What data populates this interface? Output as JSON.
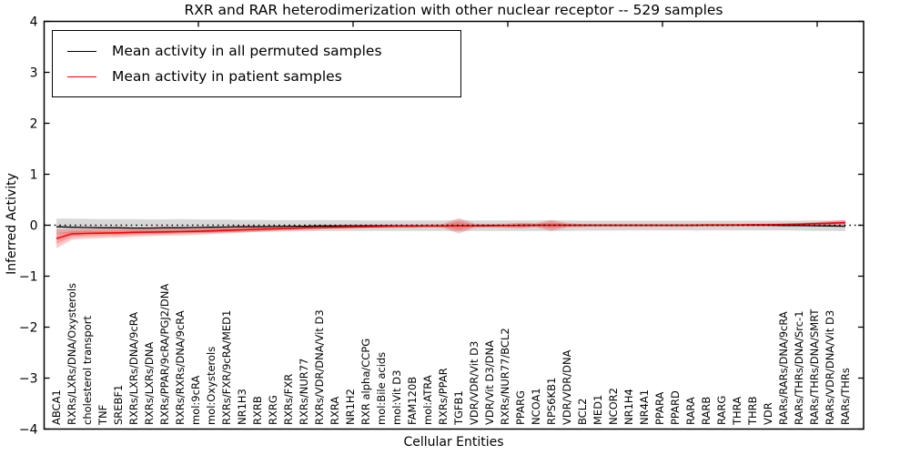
{
  "chart_data": {
    "type": "line",
    "title": "RXR and RAR heterodimerization with other nuclear receptor -- 529 samples",
    "xlabel": "Cellular Entities",
    "ylabel": "Inferred Activity",
    "ylim": [
      -4,
      4
    ],
    "yticks": [
      "4",
      "3",
      "2",
      "1",
      "0",
      "−1",
      "−2",
      "−3",
      "−4"
    ],
    "ytick_values": [
      4,
      3,
      2,
      1,
      0,
      -1,
      -2,
      -3,
      -4
    ],
    "grid": false,
    "zero_line": true,
    "legend_position": "upper left",
    "legend": [
      {
        "label": "Mean activity in all permuted samples",
        "color": "#000000"
      },
      {
        "label": "Mean activity in patient samples",
        "color": "#ff0000"
      }
    ],
    "categories": [
      "ABCA1",
      "RXRs/LXRs/DNA/Oxysterols",
      "cholesterol transport",
      "TNF",
      "SREBF1",
      "RXRs/LXRs/DNA/9cRA",
      "RXRs/LXRs/DNA",
      "RXRs/PPAR/9cRA/PGJ2/DNA",
      "RXRs/RXRs/DNA/9cRA",
      "mol:9cRA",
      "mol:Oxysterols",
      "RXRs/FXR/9cRA/MED1",
      "NR1H3",
      "RXRB",
      "RXRG",
      "RXRs/FXR",
      "RXRs/NUR77",
      "RXRs/VDR/DNA/Vit D3",
      "RXRA",
      "NR1H2",
      "RXR alpha/CCPG",
      "mol:Bile acids",
      "mol:Vit D3",
      "FAM120B",
      "mol:ATRA",
      "RXRs/PPAR",
      "TGFB1",
      "VDR/VDR/Vit D3",
      "VDR/Vit D3/DNA",
      "RXRs/NUR77/BCL2",
      "PPARG",
      "NCOA1",
      "RPS6KB1",
      "VDR/VDR/DNA",
      "BCL2",
      "MED1",
      "NCOR2",
      "NR1H4",
      "NR4A1",
      "PPARA",
      "PPARD",
      "RARA",
      "RARB",
      "RARG",
      "THRA",
      "THRB",
      "VDR",
      "RARs/RARs/DNA/9cRA",
      "RARs/THRs/DNA/Src-1",
      "RARs/THRs/DNA/SMRT",
      "RARs/VDR/DNA/Vit D3",
      "RARs/THRs"
    ],
    "series": [
      {
        "name": "Mean activity in all permuted samples",
        "color": "#000000",
        "band_color": "rgba(125,125,125,0.30)",
        "values": [
          -0.03,
          -0.04,
          -0.045,
          -0.05,
          -0.05,
          -0.055,
          -0.055,
          -0.05,
          -0.05,
          -0.045,
          -0.04,
          -0.035,
          -0.03,
          -0.03,
          -0.025,
          -0.02,
          -0.02,
          -0.015,
          -0.015,
          -0.01,
          -0.01,
          -0.01,
          -0.01,
          -0.01,
          -0.01,
          -0.01,
          -0.01,
          -0.01,
          -0.005,
          -0.005,
          0,
          0,
          0,
          0,
          0,
          0,
          0,
          0,
          0,
          0,
          0,
          0,
          0,
          0,
          0,
          0,
          0,
          -0.005,
          -0.005,
          -0.01,
          -0.015,
          -0.02
        ],
        "band_upper": [
          0.13,
          0.13,
          0.125,
          0.12,
          0.12,
          0.12,
          0.115,
          0.115,
          0.12,
          0.115,
          0.11,
          0.11,
          0.105,
          0.105,
          0.1,
          0.1,
          0.1,
          0.1,
          0.1,
          0.1,
          0.095,
          0.095,
          0.095,
          0.095,
          0.095,
          0.095,
          0.105,
          0.095,
          0.095,
          0.095,
          0.095,
          0.095,
          0.1,
          0.095,
          0.09,
          0.09,
          0.09,
          0.09,
          0.09,
          0.09,
          0.09,
          0.09,
          0.09,
          0.09,
          0.09,
          0.09,
          0.09,
          0.09,
          0.09,
          0.095,
          0.095,
          0.1
        ],
        "band_lower": [
          -0.17,
          -0.17,
          -0.165,
          -0.165,
          -0.16,
          -0.16,
          -0.155,
          -0.155,
          -0.15,
          -0.15,
          -0.145,
          -0.14,
          -0.135,
          -0.13,
          -0.125,
          -0.12,
          -0.12,
          -0.115,
          -0.115,
          -0.11,
          -0.11,
          -0.11,
          -0.11,
          -0.11,
          -0.11,
          -0.11,
          -0.12,
          -0.11,
          -0.11,
          -0.11,
          -0.11,
          -0.11,
          -0.115,
          -0.11,
          -0.105,
          -0.105,
          -0.105,
          -0.1,
          -0.1,
          -0.1,
          -0.1,
          -0.1,
          -0.1,
          -0.1,
          -0.1,
          -0.1,
          -0.1,
          -0.1,
          -0.105,
          -0.11,
          -0.11,
          -0.115
        ]
      },
      {
        "name": "Mean activity in patient samples",
        "color": "#ff0000",
        "band_color": "rgba(255,0,0,0.22)",
        "values": [
          -0.26,
          -0.17,
          -0.16,
          -0.155,
          -0.15,
          -0.14,
          -0.135,
          -0.13,
          -0.125,
          -0.12,
          -0.11,
          -0.1,
          -0.09,
          -0.08,
          -0.07,
          -0.06,
          -0.05,
          -0.045,
          -0.04,
          -0.035,
          -0.03,
          -0.025,
          -0.02,
          -0.02,
          -0.015,
          -0.015,
          -0.01,
          -0.01,
          -0.01,
          -0.005,
          -0.005,
          0,
          0,
          0,
          0,
          0,
          0,
          0,
          0,
          0,
          0,
          0,
          0.005,
          0.005,
          0.005,
          0.01,
          0.01,
          0.015,
          0.02,
          0.03,
          0.04,
          0.05
        ],
        "band_upper": [
          -0.08,
          -0.075,
          -0.07,
          -0.07,
          -0.065,
          -0.06,
          -0.055,
          -0.05,
          -0.05,
          -0.045,
          -0.04,
          -0.035,
          -0.03,
          -0.025,
          -0.02,
          -0.015,
          -0.01,
          -0.005,
          0,
          0.005,
          0.01,
          0.01,
          0.015,
          0.015,
          0.02,
          0.025,
          0.14,
          0.03,
          0.025,
          0.03,
          0.05,
          0.035,
          0.1,
          0.04,
          0.025,
          0.02,
          0.02,
          0.02,
          0.02,
          0.02,
          0.02,
          0.02,
          0.02,
          0.02,
          0.025,
          0.025,
          0.03,
          0.035,
          0.045,
          0.06,
          0.08,
          0.1
        ],
        "band_lower": [
          -0.45,
          -0.28,
          -0.26,
          -0.25,
          -0.24,
          -0.225,
          -0.215,
          -0.205,
          -0.2,
          -0.19,
          -0.175,
          -0.16,
          -0.145,
          -0.13,
          -0.115,
          -0.1,
          -0.09,
          -0.08,
          -0.07,
          -0.065,
          -0.06,
          -0.055,
          -0.05,
          -0.05,
          -0.045,
          -0.05,
          -0.16,
          -0.05,
          -0.045,
          -0.05,
          -0.06,
          -0.04,
          -0.11,
          -0.045,
          -0.035,
          -0.03,
          -0.03,
          -0.03,
          -0.03,
          -0.03,
          -0.03,
          -0.03,
          -0.025,
          -0.025,
          -0.02,
          -0.02,
          -0.02,
          -0.015,
          -0.01,
          -0.005,
          -0.005,
          0
        ]
      }
    ]
  }
}
